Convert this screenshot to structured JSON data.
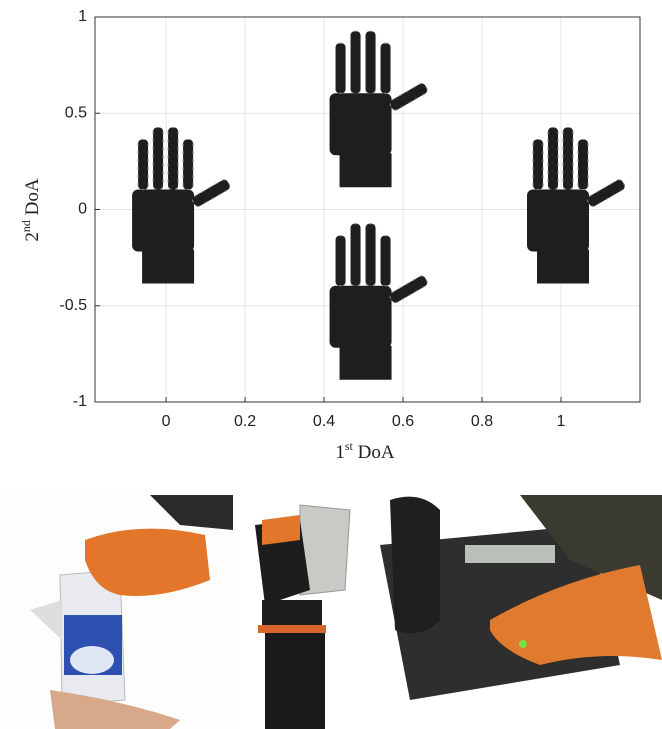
{
  "chart_data": {
    "type": "scatter",
    "xlabel": [
      "1",
      "st",
      " DoA"
    ],
    "ylabel": [
      "2",
      "nd",
      " DoA"
    ],
    "x": [
      0,
      0.5,
      1,
      0.5
    ],
    "y": [
      0,
      0.5,
      0,
      -0.5
    ],
    "color": "#1e1e1e",
    "xlim": [
      -0.18,
      1.2
    ],
    "ylim": [
      -1,
      1
    ],
    "xticks": [
      0,
      0.2,
      0.4,
      0.6,
      0.8,
      1
    ],
    "yticks": [
      -1,
      -0.5,
      0,
      0.5,
      1
    ],
    "grid": true
  }
}
